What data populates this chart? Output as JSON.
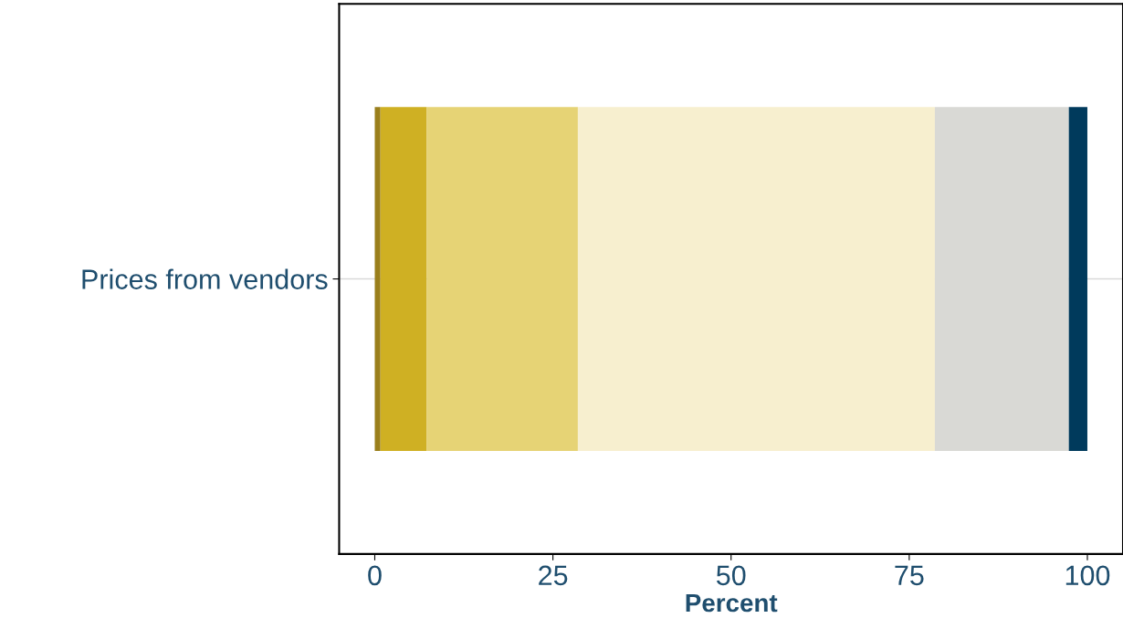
{
  "chart_data": {
    "type": "bar",
    "orientation": "horizontal",
    "stacked": true,
    "categories": [
      "Prices from vendors"
    ],
    "series": [
      {
        "color": "#9a7f1c",
        "values": [
          0.8
        ]
      },
      {
        "color": "#cfb023",
        "values": [
          6.5
        ]
      },
      {
        "color": "#e6d375",
        "values": [
          21.2
        ]
      },
      {
        "color": "#f7efcf",
        "values": [
          50.1
        ]
      },
      {
        "color": "#d9d9d5",
        "values": [
          18.8
        ]
      },
      {
        "color": "#003a5c",
        "values": [
          2.6
        ]
      }
    ],
    "xlim": [
      -5,
      105
    ],
    "xticks": [
      0,
      25,
      50,
      75,
      100
    ],
    "xlabel": "Percent",
    "grid": "y",
    "legend": false
  }
}
